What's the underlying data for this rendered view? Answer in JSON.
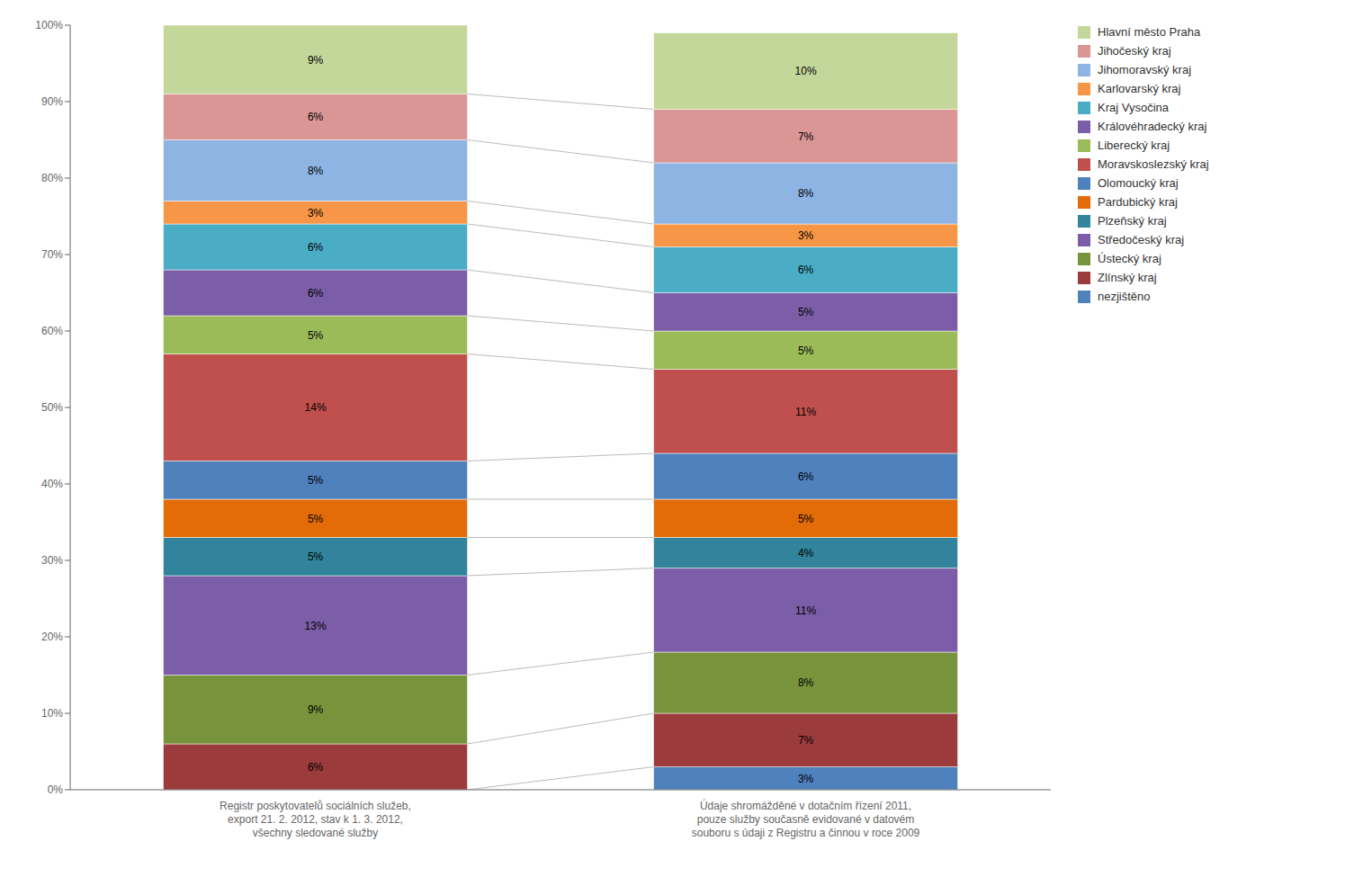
{
  "chart_data": {
    "type": "bar",
    "stacked": true,
    "data_labels": true,
    "categories": [
      "Registr poskytovatelů sociálních služeb,\nexport 21. 2. 2012, stav k 1. 3. 2012,\nvšechny sledované služby",
      "Údaje shromážděné v dotačním řízení 2011,\npouze služby současně evidované v datovém\nsouboru s údaji z Registru a činnou v roce 2009"
    ],
    "series": [
      {
        "name": "nezjištěno",
        "color": "#4F81BD",
        "values": [
          0,
          3
        ],
        "value_labels": [
          null,
          "3%"
        ]
      },
      {
        "name": "Zlínský kraj",
        "color": "#9C3B3B",
        "values": [
          6,
          7
        ],
        "value_labels": [
          "6%",
          "7%"
        ]
      },
      {
        "name": "Ústecký kraj",
        "color": "#77933C",
        "values": [
          9,
          8
        ],
        "value_labels": [
          "9%",
          "8%"
        ]
      },
      {
        "name": "Středočeský kraj",
        "color": "#7B5EA7",
        "values": [
          13,
          11
        ],
        "value_labels": [
          "13%",
          "11%"
        ]
      },
      {
        "name": "Plzeňský kraj",
        "color": "#31849B",
        "values": [
          5,
          4
        ],
        "value_labels": [
          "5%",
          "4%"
        ]
      },
      {
        "name": "Pardubický kraj",
        "color": "#E36C09",
        "values": [
          5,
          5
        ],
        "value_labels": [
          "5%",
          "5%"
        ]
      },
      {
        "name": "Olomoucký kraj",
        "color": "#4F81BD",
        "values": [
          5,
          6
        ],
        "value_labels": [
          "5%",
          "6%"
        ]
      },
      {
        "name": "Moravskoslezský kraj",
        "color": "#C0504D",
        "values": [
          14,
          11
        ],
        "value_labels": [
          "14%",
          "11%"
        ]
      },
      {
        "name": "Liberecký kraj",
        "color": "#9BBB59",
        "values": [
          5,
          5
        ],
        "value_labels": [
          "5%",
          "5%"
        ]
      },
      {
        "name": "Královéhradecký kraj",
        "color": "#7B5EA7",
        "values": [
          6,
          5
        ],
        "value_labels": [
          "6%",
          "5%"
        ]
      },
      {
        "name": "Kraj Vysočina",
        "color": "#4BACC6",
        "values": [
          6,
          6
        ],
        "value_labels": [
          "6%",
          "6%"
        ]
      },
      {
        "name": "Karlovarský kraj",
        "color": "#F79646",
        "values": [
          3,
          3
        ],
        "value_labels": [
          "3%",
          "3%"
        ]
      },
      {
        "name": "Jihomoravský kraj",
        "color": "#8EB4E3",
        "values": [
          8,
          8
        ],
        "value_labels": [
          "8%",
          "8%"
        ]
      },
      {
        "name": "Jihočeský kraj",
        "color": "#DA9694",
        "values": [
          6,
          7
        ],
        "value_labels": [
          "6%",
          "7%"
        ]
      },
      {
        "name": "Hlavní město Praha",
        "color": "#C4D79B",
        "values": [
          9,
          10
        ],
        "value_labels": [
          "9%",
          "10%"
        ]
      }
    ],
    "ylim": [
      0,
      100
    ],
    "yticks": [
      {
        "value": 0,
        "label": "0%"
      },
      {
        "value": 10,
        "label": "10%"
      },
      {
        "value": 20,
        "label": "20%"
      },
      {
        "value": 30,
        "label": "30%"
      },
      {
        "value": 40,
        "label": "40%"
      },
      {
        "value": 50,
        "label": "50%"
      },
      {
        "value": 60,
        "label": "60%"
      },
      {
        "value": 70,
        "label": "70%"
      },
      {
        "value": 80,
        "label": "80%"
      },
      {
        "value": 90,
        "label": "90%"
      },
      {
        "value": 100,
        "label": "100%"
      }
    ],
    "grid": false,
    "legend": "right"
  }
}
